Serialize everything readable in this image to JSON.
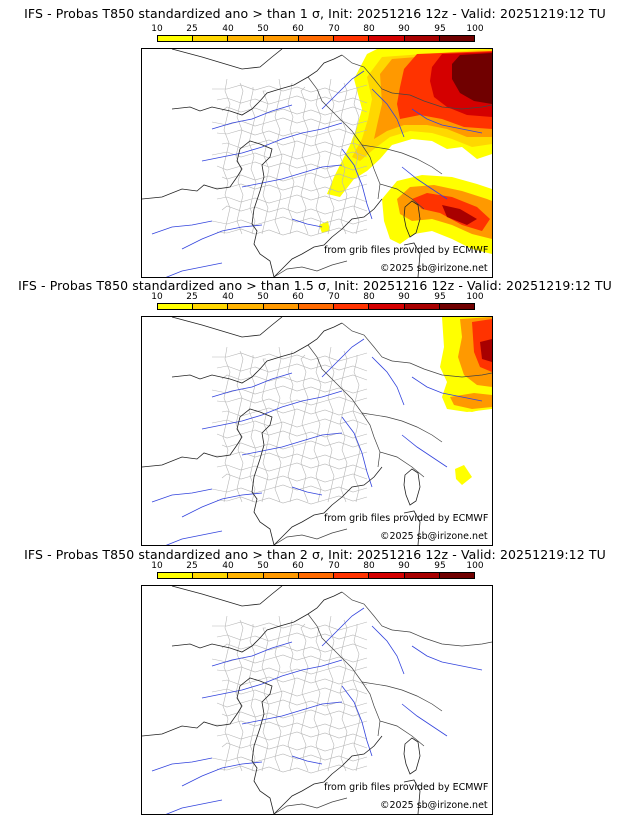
{
  "scale": {
    "labels": [
      "10",
      "25",
      "40",
      "50",
      "60",
      "70",
      "80",
      "90",
      "95",
      "100"
    ],
    "colors": [
      "#ffff00",
      "#ffd700",
      "#ffb300",
      "#ff9900",
      "#ff6a00",
      "#ff3300",
      "#d40000",
      "#a80000",
      "#700000"
    ]
  },
  "panels": [
    {
      "title": "IFS - Probas T850  standardized ano > than 1 σ, Init: 20251216 12z - Valid: 20251219:12 TU",
      "source_label": "from grib files provided by ECMWF",
      "copyright_label": "©2025 sb@irizone.net"
    },
    {
      "title": "IFS - Probas T850  standardized ano > than 1.5 σ, Init: 20251216 12z - Valid: 20251219:12 TU",
      "source_label": "from grib files provided by ECMWF",
      "copyright_label": "©2025 sb@irizone.net"
    },
    {
      "title": "IFS - Probas T850  standardized ano > than 2 σ, Init: 20251216 12z - Valid: 20251219:12 TU",
      "source_label": "from grib files provided by ECMWF",
      "copyright_label": "©2025 sb@irizone.net"
    }
  ]
}
